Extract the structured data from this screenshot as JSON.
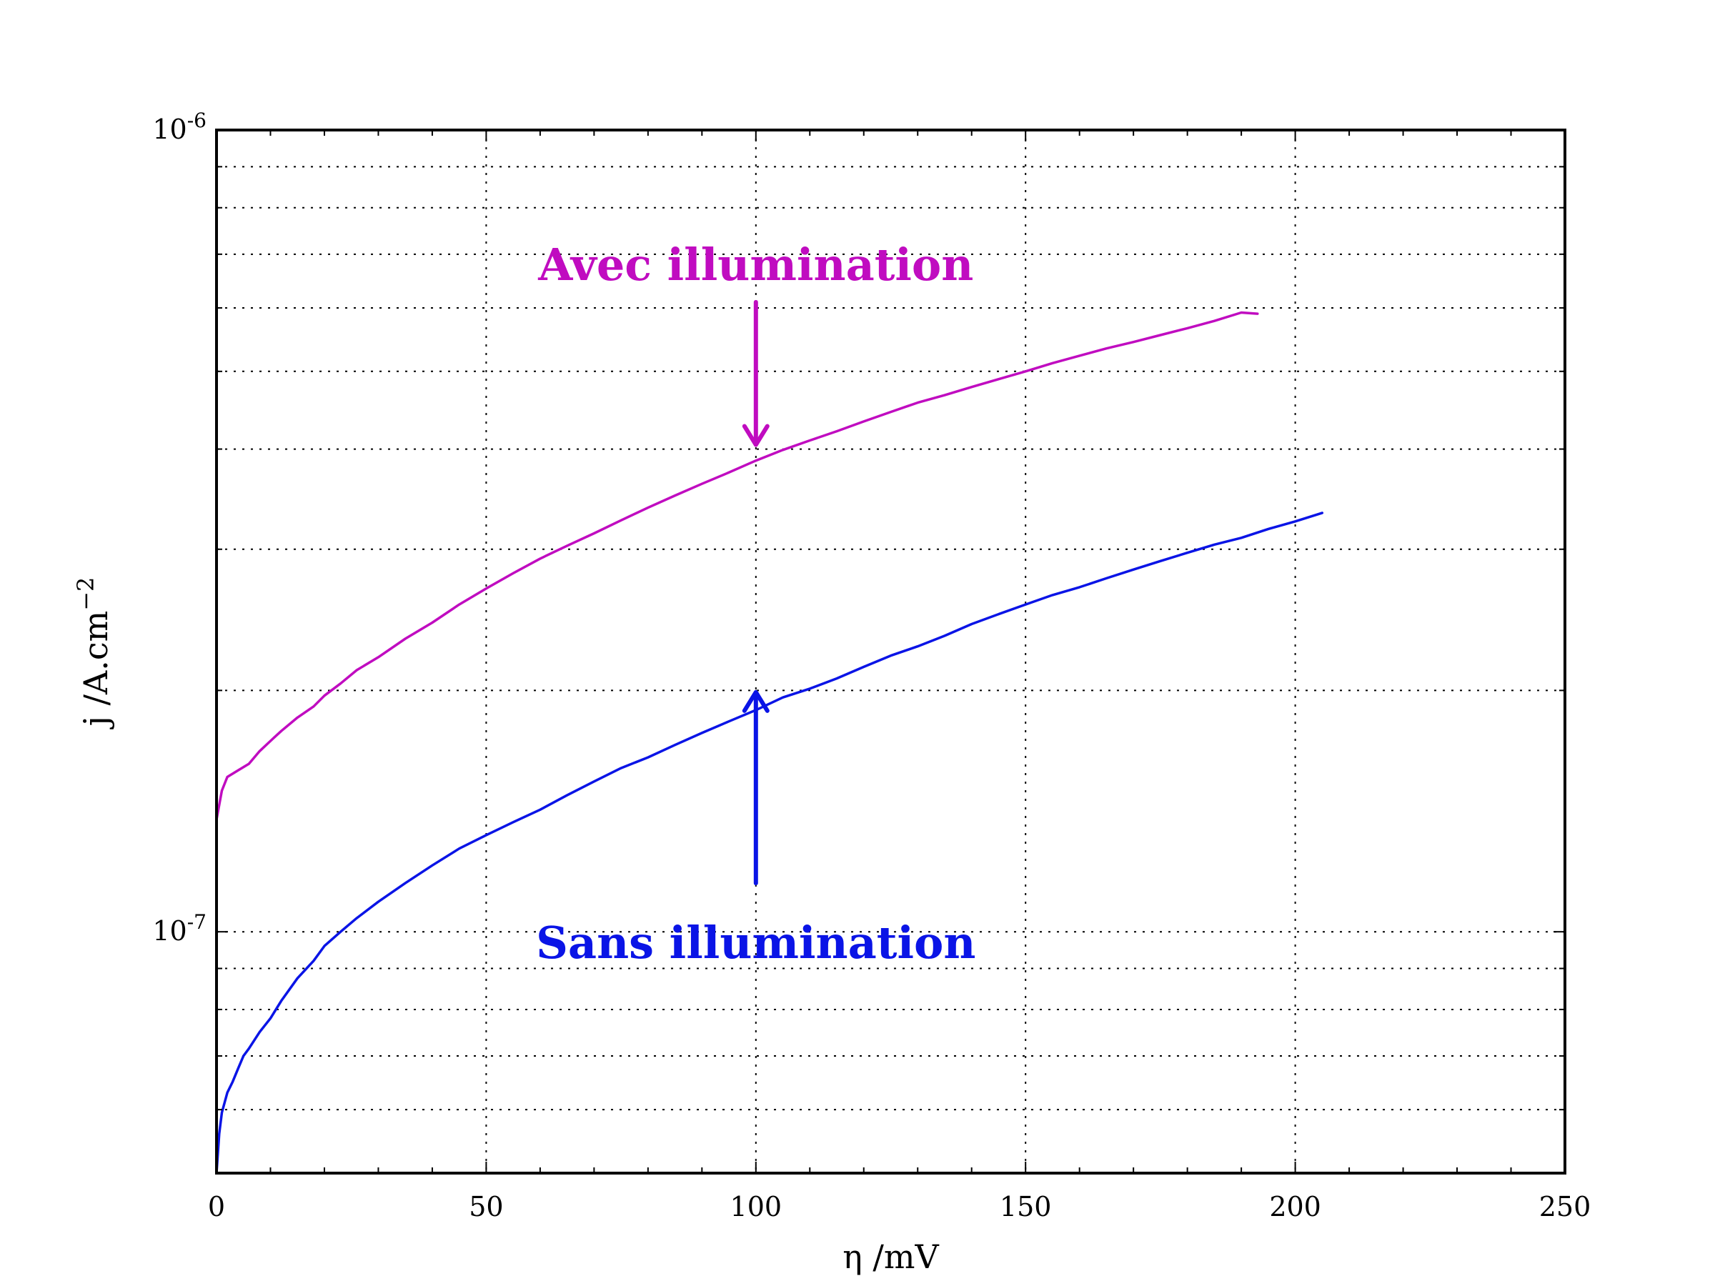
{
  "chart_data": {
    "type": "line",
    "title": "",
    "xlabel": "η /mV",
    "ylabel_base": "j /A.cm",
    "ylabel_exponent": "−2",
    "xlim": [
      0,
      250
    ],
    "ylim": [
      5e-08,
      1e-06
    ],
    "y_scale": "log",
    "grid": true,
    "x_ticks": [
      "0",
      "50",
      "100",
      "150",
      "200",
      "250"
    ],
    "y_major_ticks": [
      {
        "value": 1e-06,
        "base": "10",
        "exponent": "-6"
      },
      {
        "value": 1e-07,
        "base": "10",
        "exponent": "-7"
      }
    ],
    "y_minor_ticks": [
      6e-08,
      7e-08,
      8e-08,
      9e-08,
      2e-07,
      3e-07,
      4e-07,
      5e-07,
      6e-07,
      7e-07,
      8e-07,
      9e-07
    ],
    "series": [
      {
        "name": "Avec illumination",
        "color": "#c00cc0",
        "x": [
          0,
          1,
          2,
          4,
          6,
          8,
          10,
          12,
          15,
          18,
          20,
          23,
          26,
          30,
          35,
          40,
          45,
          50,
          55,
          60,
          65,
          70,
          75,
          80,
          85,
          90,
          95,
          100,
          105,
          110,
          115,
          120,
          125,
          130,
          135,
          140,
          145,
          150,
          155,
          160,
          165,
          170,
          175,
          180,
          185,
          190,
          193
        ],
        "y": [
          1.38e-07,
          1.5e-07,
          1.56e-07,
          1.59e-07,
          1.62e-07,
          1.68e-07,
          1.73e-07,
          1.78e-07,
          1.85e-07,
          1.91e-07,
          1.97e-07,
          2.04e-07,
          2.12e-07,
          2.2e-07,
          2.32e-07,
          2.43e-07,
          2.56e-07,
          2.68e-07,
          2.8e-07,
          2.92e-07,
          3.03e-07,
          3.14e-07,
          3.26e-07,
          3.38e-07,
          3.5e-07,
          3.62e-07,
          3.74e-07,
          3.87e-07,
          3.99e-07,
          4.1e-07,
          4.21e-07,
          4.33e-07,
          4.45e-07,
          4.57e-07,
          4.67e-07,
          4.78e-07,
          4.89e-07,
          5e-07,
          5.12e-07,
          5.23e-07,
          5.34e-07,
          5.44e-07,
          5.55e-07,
          5.66e-07,
          5.78e-07,
          5.92e-07,
          5.9e-07
        ]
      },
      {
        "name": "Sans illumination",
        "color": "#0a14e6",
        "x": [
          0,
          0.5,
          1,
          2,
          3,
          4,
          5,
          6,
          8,
          10,
          12,
          15,
          18,
          20,
          23,
          26,
          30,
          35,
          40,
          45,
          50,
          55,
          60,
          65,
          70,
          75,
          80,
          85,
          90,
          95,
          100,
          105,
          110,
          115,
          120,
          125,
          130,
          135,
          140,
          145,
          150,
          155,
          160,
          165,
          170,
          175,
          180,
          185,
          190,
          195,
          200,
          205
        ],
        "y": [
          5e-08,
          5.6e-08,
          5.95e-08,
          6.3e-08,
          6.5e-08,
          6.75e-08,
          7e-08,
          7.15e-08,
          7.5e-08,
          7.8e-08,
          8.2e-08,
          8.75e-08,
          9.2e-08,
          9.6e-08,
          1e-07,
          1.04e-07,
          1.09e-07,
          1.15e-07,
          1.21e-07,
          1.27e-07,
          1.32e-07,
          1.37e-07,
          1.42e-07,
          1.48e-07,
          1.54e-07,
          1.6e-07,
          1.65e-07,
          1.71e-07,
          1.77e-07,
          1.83e-07,
          1.89e-07,
          1.96e-07,
          2.01e-07,
          2.07e-07,
          2.14e-07,
          2.21e-07,
          2.27e-07,
          2.34e-07,
          2.42e-07,
          2.49e-07,
          2.56e-07,
          2.63e-07,
          2.69e-07,
          2.76e-07,
          2.83e-07,
          2.9e-07,
          2.97e-07,
          3.04e-07,
          3.1e-07,
          3.18e-07,
          3.25e-07,
          3.33e-07
        ]
      }
    ],
    "annotations": [
      {
        "text": "Avec illumination",
        "color": "#c00cc0",
        "arrow_x": 100,
        "arrow_from_y": 6.1e-07,
        "arrow_to_y": 4.05e-07,
        "text_x": 100,
        "text_y": 6.8e-07
      },
      {
        "text": "Sans illumination",
        "color": "#0a14e6",
        "arrow_x": 100,
        "arrow_from_y": 1.15e-07,
        "arrow_to_y": 1.99e-07,
        "text_x": 100,
        "text_y": 9.7e-08
      }
    ]
  }
}
